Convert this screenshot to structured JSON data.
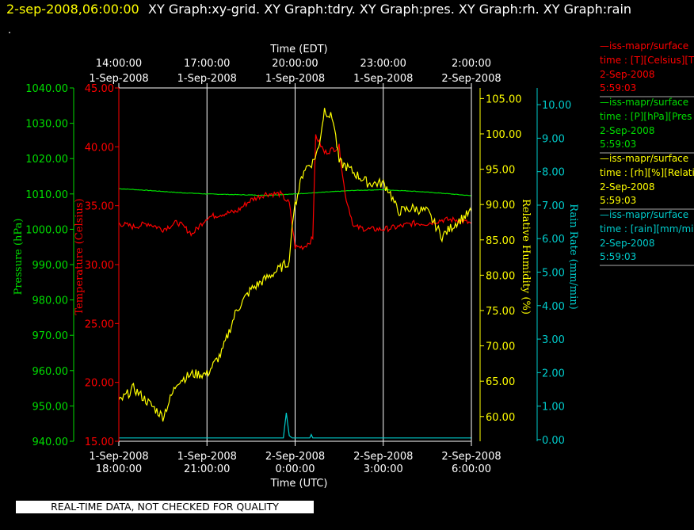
{
  "header": {
    "date": "2-sep-2008,06:00:00",
    "graphs": "XY Graph:xy-grid.  XY Graph:tdry.  XY Graph:pres.  XY Graph:rh.  XY Graph:rain",
    "dot": "."
  },
  "footer": {
    "quality_notice": "REAL-TIME DATA, NOT CHECKED FOR QUALITY"
  },
  "colors": {
    "pressure": "#00dd00",
    "temperature": "#ff0000",
    "humidity": "#ffff00",
    "rain": "#00cccc",
    "axes": "#ffffff",
    "grid": "#ffffff"
  },
  "chart_data": {
    "type": "line",
    "top_axis": {
      "label": "Time (EDT)",
      "ticks": [
        {
          "line1": "14:00:00",
          "line2": "1-Sep-2008"
        },
        {
          "line1": "17:00:00",
          "line2": "1-Sep-2008"
        },
        {
          "line1": "20:00:00",
          "line2": "1-Sep-2008"
        },
        {
          "line1": "23:00:00",
          "line2": "1-Sep-2008"
        },
        {
          "line1": "2:00:00",
          "line2": "2-Sep-2008"
        }
      ]
    },
    "bottom_axis": {
      "label": "Time (UTC)",
      "range": [
        "2008-09-01 18:00",
        "2008-09-02 06:00"
      ],
      "ticks": [
        {
          "line1": "1-Sep-2008",
          "line2": "18:00:00"
        },
        {
          "line1": "1-Sep-2008",
          "line2": "21:00:00"
        },
        {
          "line1": "2-Sep-2008",
          "line2": "0:00:00"
        },
        {
          "line1": "2-Sep-2008",
          "line2": "3:00:00"
        },
        {
          "line1": "2-Sep-2008",
          "line2": "6:00:00"
        }
      ],
      "grid_hours_utc": [
        21,
        24,
        27
      ]
    },
    "axes": {
      "pressure": {
        "label": "Pressure (hPa)",
        "range": [
          940,
          1040
        ],
        "ticks": [
          "1040.00",
          "1030.00",
          "1020.00",
          "1010.00",
          "1000.00",
          "990.00",
          "980.00",
          "970.00",
          "960.00",
          "950.00",
          "940.00"
        ]
      },
      "temperature": {
        "label": "Temperature (Celsius)",
        "range": [
          15,
          45
        ],
        "ticks": [
          "45.00",
          "40.00",
          "35.00",
          "30.00",
          "25.00",
          "20.00",
          "15.00"
        ]
      },
      "humidity": {
        "label": "Relative Humidity (%)",
        "range": [
          56.5,
          106.5
        ],
        "ticks": [
          "105.00",
          "100.00",
          "95.00",
          "90.00",
          "85.00",
          "80.00",
          "75.00",
          "70.00",
          "65.00",
          "60.00"
        ]
      },
      "rain": {
        "label": "Rain Rate (mm/min)",
        "range": [
          -0.05,
          10.5
        ],
        "ticks": [
          "10.00",
          "9.00",
          "8.00",
          "7.00",
          "6.00",
          "5.00",
          "4.00",
          "3.00",
          "2.00",
          "1.00",
          "0.00"
        ]
      }
    },
    "series": [
      {
        "key": "pressure",
        "x_hours_utc": [
          18,
          19,
          20,
          21,
          22,
          23,
          24,
          25,
          26,
          27,
          28,
          29,
          30
        ],
        "values": [
          1011.5,
          1011.0,
          1010.4,
          1010.0,
          1009.8,
          1009.6,
          1010.0,
          1010.5,
          1011.0,
          1011.2,
          1010.8,
          1010.2,
          1009.5
        ]
      },
      {
        "key": "temperature",
        "x_hours_utc": [
          18,
          18.5,
          19,
          19.5,
          20,
          20.5,
          21,
          21.5,
          22,
          22.5,
          23,
          23.5,
          23.8,
          24,
          24.3,
          24.6,
          24.7,
          25,
          25.5,
          25.7,
          26,
          26.5,
          27,
          27.5,
          28,
          28.5,
          29,
          29.5,
          30
        ],
        "values": [
          33.5,
          33.2,
          33.5,
          33.0,
          33.6,
          32.6,
          34.0,
          34.3,
          34.5,
          35.5,
          36.0,
          36.0,
          35.2,
          31.5,
          31.5,
          32.2,
          41.0,
          39.5,
          40.0,
          36.0,
          33.2,
          33.0,
          33.0,
          33.2,
          33.5,
          33.5,
          33.8,
          33.8,
          33.5
        ]
      },
      {
        "key": "humidity",
        "x_hours_utc": [
          18,
          18.5,
          19,
          19.5,
          20,
          20.5,
          21,
          21.5,
          22,
          22.5,
          23,
          23.5,
          23.8,
          23.9,
          24,
          24.3,
          24.6,
          24.8,
          25,
          25.3,
          25.5,
          25.7,
          26,
          26.5,
          27,
          27.2,
          27.5,
          28,
          28.5,
          29,
          29.5,
          30
        ],
        "values": [
          62.0,
          64.0,
          62.0,
          60.0,
          65.0,
          66.0,
          66.0,
          69.0,
          75.0,
          78.0,
          79.5,
          81.0,
          82.0,
          87.0,
          90.0,
          95.0,
          96.0,
          98.0,
          103.5,
          102.0,
          96.0,
          95.5,
          94.5,
          93.0,
          93.0,
          92.0,
          89.0,
          89.5,
          89.0,
          85.5,
          87.5,
          89.0
        ]
      },
      {
        "key": "rain",
        "x_hours_utc": [
          18,
          23.6,
          23.7,
          23.8,
          23.9,
          24.0,
          24.5,
          24.55,
          24.6,
          24.7,
          30
        ],
        "values": [
          0.05,
          0.05,
          0.8,
          0.12,
          0.05,
          0.05,
          0.05,
          0.15,
          0.05,
          0.05,
          0.05
        ]
      }
    ],
    "legend": {
      "placement": "right",
      "entries": [
        {
          "key": "temperature",
          "source": "—iss-mapr/surface",
          "desc": "time : [T][Celsius][T",
          "date": "2-Sep-2008",
          "time": "5:59:03"
        },
        {
          "key": "pressure",
          "source": "—iss-mapr/surface",
          "desc": "time : [P][hPa][Pres",
          "date": "2-Sep-2008",
          "time": "5:59:03"
        },
        {
          "key": "humidity",
          "source": "—iss-mapr/surface",
          "desc": "time : [rh][%][Relati",
          "date": "2-Sep-2008",
          "time": "5:59:03"
        },
        {
          "key": "rain",
          "source": "—iss-mapr/surface",
          "desc": "time : [rain][mm/min",
          "date": "2-Sep-2008",
          "time": "5:59:03"
        }
      ]
    }
  }
}
